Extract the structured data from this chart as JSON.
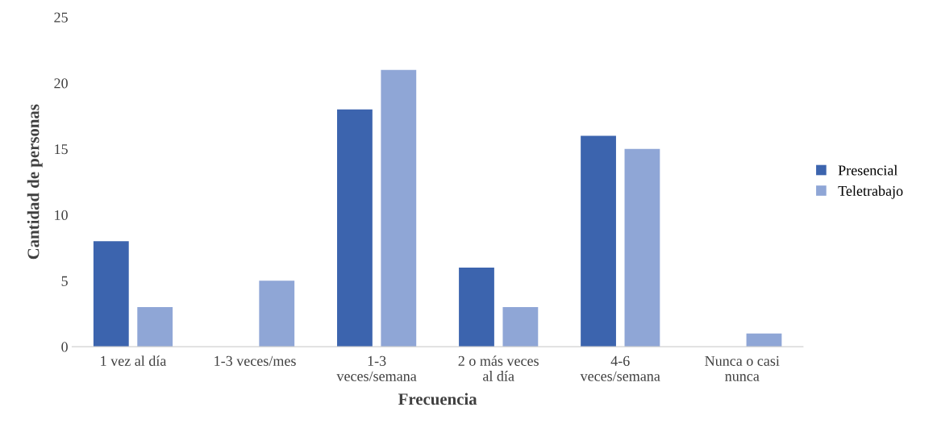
{
  "chart_data": {
    "type": "bar",
    "xlabel": "Frecuencia",
    "ylabel": "Cantidad de personas",
    "categories": [
      "1 vez al día",
      "1-3 veces/mes",
      "1-3\nveces/semana",
      "2 o más veces\nal día",
      "4-6\nveces/semana",
      "Nunca o casi\nnunca"
    ],
    "series": [
      {
        "name": "Presencial",
        "color": "#3c64ae",
        "values": [
          8,
          0,
          18,
          6,
          16,
          0
        ]
      },
      {
        "name": "Teletrabajo",
        "color": "#8fa6d6",
        "values": [
          3,
          5,
          21,
          3,
          15,
          1
        ]
      }
    ],
    "ylim": [
      0,
      25
    ],
    "yticks": [
      0,
      5,
      10,
      15,
      20,
      25
    ],
    "grid": false,
    "legend": "right"
  }
}
